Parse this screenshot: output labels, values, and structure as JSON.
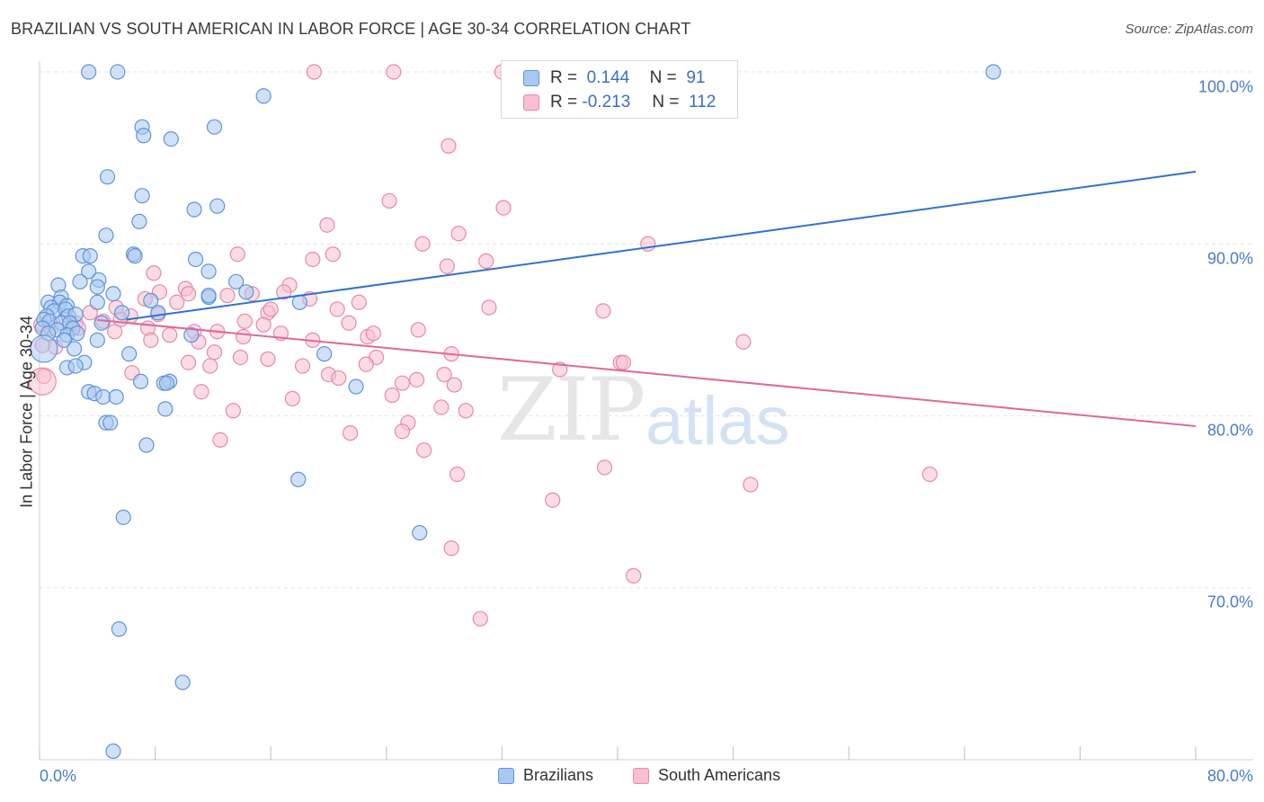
{
  "header": {
    "title": "BRAZILIAN VS SOUTH AMERICAN IN LABOR FORCE | AGE 30-34 CORRELATION CHART",
    "source": "Source: ZipAtlas.com"
  },
  "watermark": {
    "zip": "ZIP",
    "atlas": "atlas"
  },
  "legend": {
    "r_label": "R =",
    "n_label": "N =",
    "series": [
      {
        "name": "Brazilians",
        "r": "0.144",
        "n": "91",
        "fill": "#a9c8f0",
        "stroke": "#5f95d8"
      },
      {
        "name": "South Americans",
        "r": "-0.213",
        "n": "112",
        "fill": "#f7bfd0",
        "stroke": "#e889a8"
      }
    ]
  },
  "colors": {
    "blue_line": "#2f72d0",
    "pink_line": "#e0679a",
    "tick_text": "#4a7cc8",
    "grid": "#e4e4e4"
  },
  "chart_data": {
    "type": "scatter",
    "title": "BRAZILIAN VS SOUTH AMERICAN IN LABOR FORCE | AGE 30-34 CORRELATION CHART",
    "xlabel": "",
    "ylabel": "In Labor Force | Age 30-34",
    "xlim": [
      0,
      80
    ],
    "ylim": [
      60,
      100
    ],
    "x_tick_labels": [
      "0.0%",
      "80.0%"
    ],
    "y_ticks": [
      70,
      80,
      90,
      100
    ],
    "y_tick_labels": [
      "70.0%",
      "80.0%",
      "90.0%",
      "100.0%"
    ],
    "grid": true,
    "series": [
      {
        "name": "Brazilians",
        "r": 0.144,
        "n": 91,
        "trend": {
          "x": [
            0,
            80
          ],
          "y": [
            84.9,
            94.2
          ]
        },
        "points": [
          [
            3.4,
            100
          ],
          [
            5.4,
            100
          ],
          [
            66,
            100
          ],
          [
            15.5,
            98.6
          ],
          [
            7.1,
            96.8
          ],
          [
            12.1,
            96.8
          ],
          [
            7.2,
            96.3
          ],
          [
            9.1,
            96.1
          ],
          [
            4.7,
            93.9
          ],
          [
            7.1,
            92.8
          ],
          [
            10.7,
            92
          ],
          [
            12.3,
            92.2
          ],
          [
            6.9,
            91.3
          ],
          [
            4.6,
            90.5
          ],
          [
            3.0,
            89.3
          ],
          [
            3.5,
            89.3
          ],
          [
            6.5,
            89.4
          ],
          [
            6.6,
            89.3
          ],
          [
            10.8,
            89.1
          ],
          [
            3.4,
            88.4
          ],
          [
            11.7,
            88.4
          ],
          [
            2.8,
            87.8
          ],
          [
            1.3,
            87.6
          ],
          [
            4.1,
            87.9
          ],
          [
            13.6,
            87.8
          ],
          [
            4.0,
            87.5
          ],
          [
            5.1,
            87.1
          ],
          [
            14.3,
            87.2
          ],
          [
            1.5,
            86.9
          ],
          [
            0.6,
            86.6
          ],
          [
            7.7,
            86.7
          ],
          [
            11.7,
            86.9
          ],
          [
            1.4,
            86.6
          ],
          [
            0.8,
            86.3
          ],
          [
            1.9,
            86.4
          ],
          [
            4.0,
            86.6
          ],
          [
            1.0,
            86.1
          ],
          [
            1.8,
            86.2
          ],
          [
            0.5,
            85.8
          ],
          [
            2.0,
            85.8
          ],
          [
            2.5,
            85.9
          ],
          [
            5.7,
            86
          ],
          [
            8.2,
            86
          ],
          [
            0.3,
            85.6
          ],
          [
            0.7,
            85.5
          ],
          [
            1.5,
            85.4
          ],
          [
            2.1,
            85.4
          ],
          [
            4.3,
            85.4
          ],
          [
            0.2,
            85.1
          ],
          [
            1.2,
            85
          ],
          [
            2.3,
            85.1
          ],
          [
            0.6,
            84.8
          ],
          [
            1.9,
            84.7
          ],
          [
            2.6,
            84.8
          ],
          [
            1.7,
            84.4
          ],
          [
            4.0,
            84.4
          ],
          [
            2.4,
            83.9
          ],
          [
            10.5,
            84.7
          ],
          [
            19.7,
            83.6
          ],
          [
            6.2,
            83.6
          ],
          [
            3.1,
            83.1
          ],
          [
            1.9,
            82.8
          ],
          [
            2.5,
            82.9
          ],
          [
            7.0,
            82.0
          ],
          [
            9.0,
            82.0
          ],
          [
            8.6,
            81.9
          ],
          [
            3.4,
            81.4
          ],
          [
            3.8,
            81.3
          ],
          [
            8.8,
            81.9
          ],
          [
            21.9,
            81.7
          ],
          [
            4.4,
            81.1
          ],
          [
            5.3,
            81.1
          ],
          [
            8.7,
            80.4
          ],
          [
            4.6,
            79.6
          ],
          [
            4.9,
            79.6
          ],
          [
            7.4,
            78.3
          ],
          [
            17.9,
            76.3
          ],
          [
            5.8,
            74.1
          ],
          [
            26.3,
            73.2
          ],
          [
            5.5,
            67.6
          ],
          [
            9.9,
            64.5
          ],
          [
            5.1,
            60.5
          ],
          [
            18.0,
            86.6
          ],
          [
            11.7,
            87.0
          ]
        ]
      },
      {
        "name": "South Americans",
        "r": -0.213,
        "n": 112,
        "trend": {
          "x": [
            0,
            80
          ],
          "y": [
            85.9,
            79.4
          ]
        },
        "points": [
          [
            19.0,
            100
          ],
          [
            24.5,
            100
          ],
          [
            32.0,
            100
          ],
          [
            28.3,
            95.7
          ],
          [
            24.2,
            92.5
          ],
          [
            32.1,
            92.1
          ],
          [
            19.9,
            91.1
          ],
          [
            29.0,
            90.6
          ],
          [
            26.5,
            90.0
          ],
          [
            42.1,
            90.0
          ],
          [
            13.7,
            89.4
          ],
          [
            20.3,
            89.4
          ],
          [
            18.9,
            89.1
          ],
          [
            30.9,
            89.0
          ],
          [
            28.2,
            88.7
          ],
          [
            7.9,
            88.3
          ],
          [
            17.3,
            87.6
          ],
          [
            10.1,
            87.4
          ],
          [
            16.9,
            87.2
          ],
          [
            8.3,
            87.2
          ],
          [
            13.0,
            87.0
          ],
          [
            14.7,
            87.1
          ],
          [
            18.7,
            86.8
          ],
          [
            7.3,
            86.8
          ],
          [
            9.5,
            86.6
          ],
          [
            22.1,
            86.6
          ],
          [
            5.3,
            86.3
          ],
          [
            31.1,
            86.3
          ],
          [
            20.6,
            86.2
          ],
          [
            39.0,
            86.1
          ],
          [
            3.5,
            86.0
          ],
          [
            15.8,
            86.0
          ],
          [
            8.2,
            85.9
          ],
          [
            6.3,
            85.8
          ],
          [
            1.8,
            85.7
          ],
          [
            2.5,
            85.4
          ],
          [
            0.1,
            85.3
          ],
          [
            4.4,
            85.5
          ],
          [
            15.5,
            85.3
          ],
          [
            14.2,
            85.5
          ],
          [
            5.6,
            85.6
          ],
          [
            21.4,
            85.4
          ],
          [
            0.8,
            85.1
          ],
          [
            2.7,
            85.1
          ],
          [
            7.5,
            85.1
          ],
          [
            10.7,
            84.9
          ],
          [
            26.2,
            85.0
          ],
          [
            12.3,
            84.9
          ],
          [
            16.7,
            84.8
          ],
          [
            5.2,
            84.9
          ],
          [
            9.0,
            84.7
          ],
          [
            14.1,
            84.6
          ],
          [
            22.7,
            84.6
          ],
          [
            48.7,
            84.3
          ],
          [
            18.9,
            84.4
          ],
          [
            7.7,
            84.4
          ],
          [
            11.0,
            84.3
          ],
          [
            1.1,
            84.0
          ],
          [
            12.1,
            83.7
          ],
          [
            13.9,
            83.4
          ],
          [
            28.5,
            83.6
          ],
          [
            15.8,
            83.3
          ],
          [
            40.2,
            83.1
          ],
          [
            40.4,
            83.1
          ],
          [
            10.3,
            83.1
          ],
          [
            23.3,
            83.4
          ],
          [
            22.6,
            83.0
          ],
          [
            18.2,
            82.9
          ],
          [
            11.8,
            82.9
          ],
          [
            36.0,
            82.7
          ],
          [
            6.4,
            82.5
          ],
          [
            28.0,
            82.4
          ],
          [
            20.0,
            82.4
          ],
          [
            20.7,
            82.2
          ],
          [
            26.1,
            82.1
          ],
          [
            25.1,
            81.9
          ],
          [
            28.7,
            81.8
          ],
          [
            11.2,
            81.4
          ],
          [
            24.4,
            81.2
          ],
          [
            17.5,
            81.0
          ],
          [
            29.5,
            80.3
          ],
          [
            13.4,
            80.3
          ],
          [
            27.8,
            80.5
          ],
          [
            25.5,
            79.6
          ],
          [
            25.1,
            79.1
          ],
          [
            21.5,
            79.0
          ],
          [
            12.5,
            78.6
          ],
          [
            26.6,
            78.0
          ],
          [
            39.1,
            77.0
          ],
          [
            61.6,
            76.6
          ],
          [
            28.9,
            76.6
          ],
          [
            49.2,
            76.0
          ],
          [
            35.5,
            75.1
          ],
          [
            28.5,
            72.3
          ],
          [
            41.1,
            70.7
          ],
          [
            30.5,
            68.2
          ],
          [
            0.2,
            84.1
          ],
          [
            0.3,
            82.3
          ],
          [
            23.1,
            84.8
          ],
          [
            16.0,
            86.2
          ],
          [
            10.3,
            87.1
          ]
        ]
      }
    ]
  }
}
